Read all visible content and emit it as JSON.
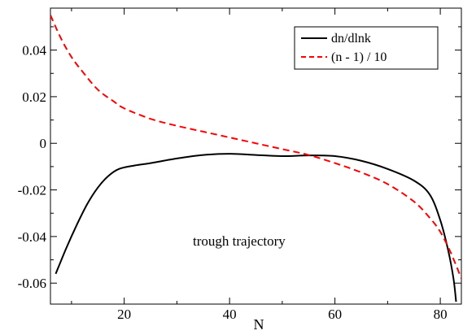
{
  "chart_data": {
    "type": "line",
    "title": "",
    "xlabel": "N",
    "ylabel": "",
    "xlim": [
      6,
      84
    ],
    "ylim": [
      -0.069,
      0.058
    ],
    "grid": false,
    "legend_position": "top-right",
    "annotation": "trough trajectory",
    "x_ticks": [
      {
        "value": 20,
        "label": "20"
      },
      {
        "value": 40,
        "label": "40"
      },
      {
        "value": 60,
        "label": "60"
      },
      {
        "value": 80,
        "label": "80"
      }
    ],
    "y_ticks": [
      {
        "value": 0.04,
        "label": "0.04"
      },
      {
        "value": 0.02,
        "label": "0.02"
      },
      {
        "value": 0,
        "label": "0"
      },
      {
        "value": -0.02,
        "label": "-0.02"
      },
      {
        "value": -0.04,
        "label": "-0.04"
      },
      {
        "value": -0.06,
        "label": "-0.06"
      }
    ],
    "series": [
      {
        "name": "dn/dlnk",
        "color": "#000000",
        "dash": "solid",
        "x": [
          7,
          9,
          11,
          13,
          15,
          17,
          19,
          22,
          25,
          30,
          35,
          40,
          45,
          50,
          55,
          60,
          65,
          70,
          75,
          78,
          80,
          81.5,
          82.5,
          83
        ],
        "y": [
          -0.056,
          -0.045,
          -0.035,
          -0.026,
          -0.019,
          -0.014,
          -0.011,
          -0.0095,
          -0.0085,
          -0.0065,
          -0.005,
          -0.0045,
          -0.005,
          -0.0055,
          -0.0052,
          -0.0055,
          -0.0075,
          -0.011,
          -0.016,
          -0.022,
          -0.033,
          -0.046,
          -0.058,
          -0.068
        ]
      },
      {
        "name": "(n - 1) / 10",
        "color": "#ff0000",
        "dash": "dashed",
        "x": [
          6,
          8,
          10,
          12,
          15,
          18,
          20,
          25,
          30,
          35,
          40,
          45,
          50,
          55,
          60,
          65,
          70,
          75,
          78,
          80,
          82,
          84
        ],
        "y": [
          0.055,
          0.045,
          0.037,
          0.031,
          0.023,
          0.018,
          0.015,
          0.0105,
          0.0075,
          0.005,
          0.0025,
          0.0,
          -0.0025,
          -0.005,
          -0.0085,
          -0.0125,
          -0.0175,
          -0.025,
          -0.032,
          -0.038,
          -0.047,
          -0.058
        ]
      }
    ]
  }
}
